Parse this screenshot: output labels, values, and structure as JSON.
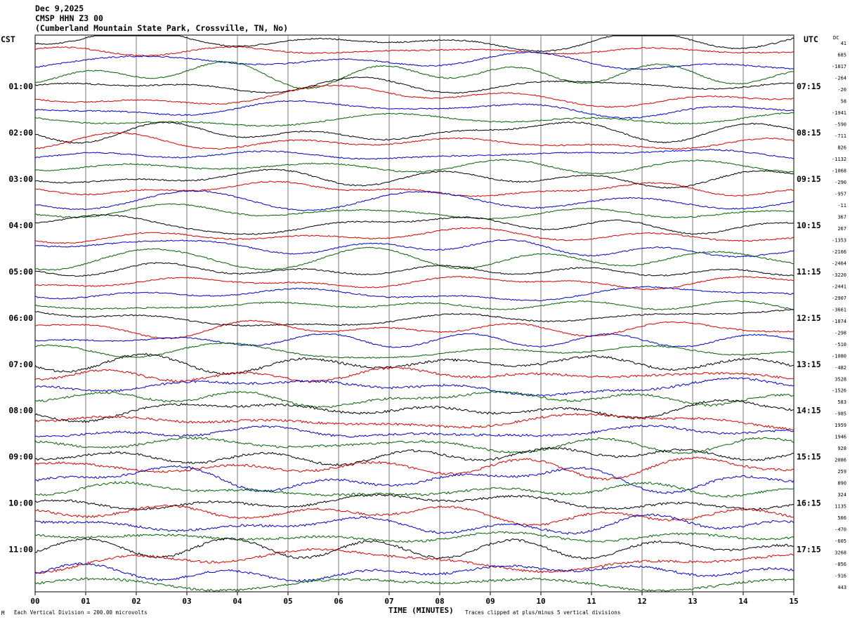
{
  "header": {
    "date": "Dec 9,2025",
    "station": "CMSP HHN Z3 00",
    "location": "(Cumberland Mountain State Park, Crossville, TN, No)"
  },
  "left_timezone": "CST",
  "right_timezone": "UTC",
  "dc_label": "DC",
  "footer": {
    "scale": "Each Vertical Division =  200.00 microvolts",
    "xlabel": "TIME (MINUTES)",
    "clip_note": "Traces clipped at plus/minus 5 vertical divisions",
    "logo_mark": "M"
  },
  "chart_data": {
    "type": "line",
    "title": "CMSP HHN Z3 00",
    "xlabel": "TIME (MINUTES)",
    "ylabel": "",
    "xlim": [
      0,
      15
    ],
    "x_ticks": [
      "00",
      "01",
      "02",
      "03",
      "04",
      "05",
      "06",
      "07",
      "08",
      "09",
      "10",
      "11",
      "12",
      "13",
      "14",
      "15"
    ],
    "left_hour_labels": [
      "01:00",
      "02:00",
      "03:00",
      "04:00",
      "05:00",
      "06:00",
      "07:00",
      "08:00",
      "09:00",
      "10:00",
      "11:00"
    ],
    "right_hour_labels": [
      "07:15",
      "08:15",
      "09:15",
      "10:15",
      "11:15",
      "12:15",
      "13:15",
      "14:15",
      "15:15",
      "16:15",
      "17:15"
    ],
    "trace_colors": [
      "#000000",
      "#d40000",
      "#0000c8",
      "#006400"
    ],
    "dc_offsets": [
      "41",
      "685",
      "-1817",
      "-264",
      "-20",
      "58",
      "-1941",
      "-590",
      "-711",
      "826",
      "-1132",
      "-1068",
      "-290",
      "-957",
      "-11",
      "367",
      "267",
      "-1353",
      "-2166",
      "-2464",
      "-3220",
      "-2441",
      "-2907",
      "-3661",
      "-1874",
      "-298",
      "-510",
      "-1080",
      "-482",
      "3528",
      "-1526",
      "583",
      "-985",
      "1959",
      "1946",
      "928",
      "2086",
      "259",
      "890",
      "324",
      "1135",
      "506",
      "-470",
      "-605",
      "3268",
      "-856",
      "-916",
      "443"
    ]
  }
}
